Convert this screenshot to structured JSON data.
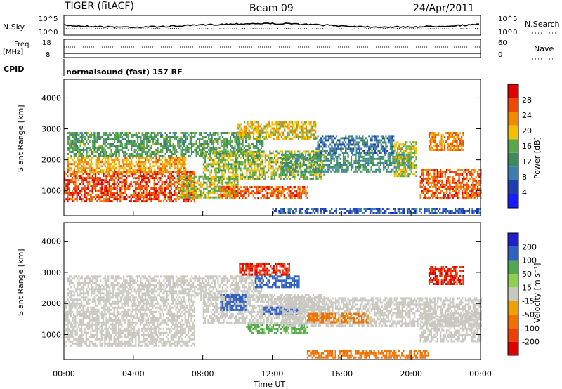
{
  "header": {
    "radar": "TIGER (fitACF)",
    "beam": "Beam 09",
    "date": "24/Apr/2011"
  },
  "top_panels": {
    "nsky_label": "N.Sky",
    "nsky_ticks": [
      "10^5",
      "10^0"
    ],
    "nsearch_label": "N.Search",
    "nsearch_ticks": [
      "10^5",
      "10^0"
    ],
    "freq_label_1": "Freq.",
    "freq_label_2": "[MHz]",
    "freq_ticks": [
      "18",
      "8"
    ],
    "nave_label": "Nave",
    "nave_ticks": [
      "60",
      "0"
    ],
    "cpid_label": "CPID",
    "cpid_value": "normalsound (fast) 157 RF"
  },
  "colors": {
    "power_scale": [
      "#1a1aff",
      "#1f3fb0",
      "#3b7fb0",
      "#3c8a5a",
      "#5aa84a",
      "#f2c000",
      "#f08a00",
      "#f04a00",
      "#e00000"
    ],
    "velocity_scale": [
      "#1f1fd0",
      "#2f5fc0",
      "#4faa4f",
      "#8fd04f",
      "#c8c8c0",
      "#f0a000",
      "#f07000",
      "#f04000",
      "#e00000"
    ]
  },
  "chart_data": [
    {
      "type": "heatmap",
      "name": "power",
      "ylabel": "Slant Range [km]",
      "ylim": [
        200,
        4600
      ],
      "yticks": [
        "4000",
        "3000",
        "2000",
        "1000"
      ],
      "xlim_hours": [
        0,
        24
      ],
      "xticks": [
        "00:00",
        "04:00",
        "08:00",
        "12:00",
        "16:00",
        "20:00",
        "00:00"
      ],
      "colorbar_label": "Power [dB]",
      "colorbar_ticks": [
        "28",
        "24",
        "20",
        "16",
        "12",
        "8",
        "4"
      ],
      "colorbar_range": [
        0,
        32
      ],
      "echo_regions": [
        {
          "t0": 0.0,
          "t1": 7.5,
          "r0": 650,
          "r1": 1650,
          "level": 27
        },
        {
          "t0": 0.2,
          "t1": 7.0,
          "r0": 1600,
          "r1": 2100,
          "level": 22
        },
        {
          "t0": 6.5,
          "t1": 10.0,
          "r0": 800,
          "r1": 1500,
          "level": 18
        },
        {
          "t0": 0.2,
          "t1": 11.5,
          "r0": 2100,
          "r1": 2900,
          "level": 14
        },
        {
          "t0": 8.0,
          "t1": 15.0,
          "r0": 1400,
          "r1": 2300,
          "level": 17
        },
        {
          "t0": 9.0,
          "t1": 14.0,
          "r0": 800,
          "r1": 1150,
          "level": 26
        },
        {
          "t0": 10.0,
          "t1": 14.5,
          "r0": 2700,
          "r1": 3250,
          "level": 20
        },
        {
          "t0": 12.5,
          "t1": 20.0,
          "r0": 1600,
          "r1": 2200,
          "level": 12
        },
        {
          "t0": 14.5,
          "t1": 19.0,
          "r0": 2200,
          "r1": 2800,
          "level": 9
        },
        {
          "t0": 19.0,
          "t1": 20.3,
          "r0": 1500,
          "r1": 2600,
          "level": 18
        },
        {
          "t0": 20.5,
          "t1": 24.0,
          "r0": 800,
          "r1": 1700,
          "level": 26
        },
        {
          "t0": 21.0,
          "t1": 23.0,
          "r0": 2300,
          "r1": 2900,
          "level": 24
        },
        {
          "t0": 12.0,
          "t1": 24.0,
          "r0": 250,
          "r1": 450,
          "level": 7
        }
      ]
    },
    {
      "type": "heatmap",
      "name": "velocity",
      "ylabel": "Slant Range [km]",
      "ylim": [
        200,
        4600
      ],
      "yticks": [
        "4000",
        "3000",
        "2000",
        "1000"
      ],
      "xlim_hours": [
        0,
        24
      ],
      "xticks": [
        "00:00",
        "04:00",
        "08:00",
        "12:00",
        "16:00",
        "20:00",
        "00:00"
      ],
      "xlabel": "Time UT",
      "colorbar_label": "Velocity [m s⁻¹]",
      "colorbar_ticks": [
        "200",
        "100",
        "50",
        "15",
        "-15",
        "-50",
        "-100",
        "-200"
      ],
      "echo_regions": [
        {
          "t0": 0.0,
          "t1": 7.5,
          "r0": 650,
          "r1": 2100,
          "vel": 0
        },
        {
          "t0": 0.2,
          "t1": 11.5,
          "r0": 2100,
          "r1": 2900,
          "vel": 0
        },
        {
          "t0": 8.0,
          "t1": 15.0,
          "r0": 1400,
          "r1": 2300,
          "vel": 0
        },
        {
          "t0": 9.0,
          "t1": 10.5,
          "r0": 1800,
          "r1": 2300,
          "vel": 120
        },
        {
          "t0": 10.5,
          "t1": 14.0,
          "r0": 1050,
          "r1": 1350,
          "vel": 60
        },
        {
          "t0": 11.5,
          "t1": 13.5,
          "r0": 1650,
          "r1": 1900,
          "vel": 180
        },
        {
          "t0": 10.0,
          "t1": 13.0,
          "r0": 2900,
          "r1": 3300,
          "vel": -200
        },
        {
          "t0": 11.0,
          "t1": 13.5,
          "r0": 2500,
          "r1": 2900,
          "vel": 150
        },
        {
          "t0": 12.5,
          "t1": 24.0,
          "r0": 1300,
          "r1": 2200,
          "vel": 0
        },
        {
          "t0": 14.0,
          "t1": 17.5,
          "r0": 1400,
          "r1": 1700,
          "vel": -60
        },
        {
          "t0": 20.5,
          "t1": 24.0,
          "r0": 800,
          "r1": 1700,
          "vel": 0
        },
        {
          "t0": 21.0,
          "t1": 23.0,
          "r0": 2600,
          "r1": 3200,
          "vel": -200
        },
        {
          "t0": 14.0,
          "t1": 21.0,
          "r0": 250,
          "r1": 500,
          "vel": -70
        }
      ]
    }
  ]
}
